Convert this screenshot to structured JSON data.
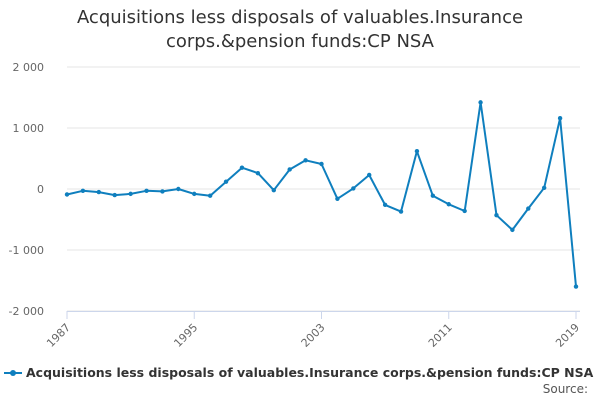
{
  "chart_data": {
    "type": "line",
    "title_lines": [
      "Acquisitions less disposals of valuables.Insurance",
      "corps.&pension funds:CP NSA"
    ],
    "xlabel": "",
    "ylabel": "",
    "ylim": [
      -2000,
      2000
    ],
    "xlim": [
      1987,
      2019
    ],
    "yticks": [
      2000,
      1000,
      0,
      -1000,
      -2000
    ],
    "ytick_labels": [
      "2 000",
      "1 000",
      "0",
      "-1 000",
      "-2 000"
    ],
    "xticks": [
      1987,
      1995,
      2003,
      2011,
      2019
    ],
    "xtick_labels": [
      "1987",
      "1995",
      "2003",
      "2011",
      "2019"
    ],
    "grid": true,
    "legend_position": "bottom",
    "color": "#0f7fbe",
    "series": [
      {
        "name": "Acquisitions less disposals of valuables.Insurance corps.&pension funds:CP NSA",
        "x": [
          1987,
          1988,
          1989,
          1990,
          1991,
          1992,
          1993,
          1994,
          1995,
          1996,
          1997,
          1998,
          1999,
          2000,
          2001,
          2002,
          2003,
          2004,
          2005,
          2006,
          2007,
          2008,
          2009,
          2010,
          2011,
          2012,
          2013,
          2014,
          2015,
          2016,
          2017,
          2018,
          2019
        ],
        "values": [
          -90,
          -30,
          -50,
          -100,
          -80,
          -30,
          -40,
          0,
          -80,
          -110,
          120,
          350,
          260,
          -20,
          320,
          470,
          410,
          -160,
          10,
          230,
          -260,
          -370,
          620,
          -110,
          -250,
          -360,
          1420,
          -430,
          -670,
          -320,
          20,
          1160,
          -1600
        ]
      }
    ],
    "source_label": "Source:"
  }
}
